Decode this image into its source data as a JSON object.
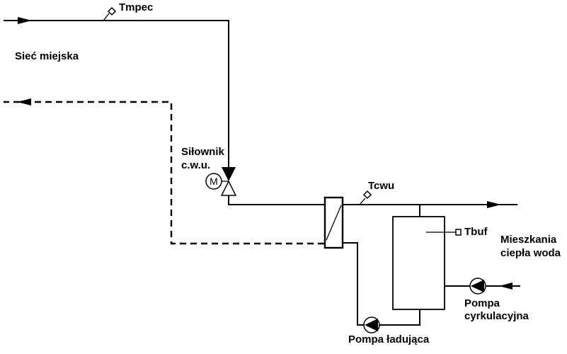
{
  "diagram": {
    "labels": {
      "tmpec": "Tmpec",
      "network": "Sieć miejska",
      "actuator_line1": "Siłownik",
      "actuator_line2": "c.w.u.",
      "motor": "M",
      "tcwu": "Tcwu",
      "tbuf": "Tbuf",
      "apartments_line1": "Mieszkania",
      "apartments_line2": "ciepła woda",
      "circ_pump_line1": "Pompa",
      "circ_pump_line2": "cyrkulacyjna",
      "charge_pump": "Pompa ładująca"
    }
  }
}
